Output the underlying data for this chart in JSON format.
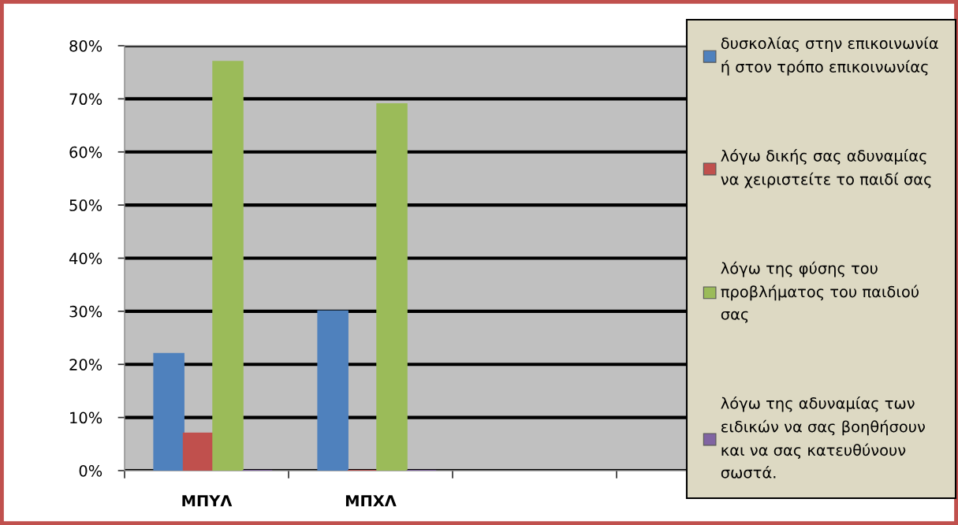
{
  "chart_data": {
    "type": "bar",
    "categories": [
      "ΜΠΥΛ",
      "ΜΠΧΛ",
      null,
      null
    ],
    "series": [
      {
        "name": "δυσκολίας στην επικοινωνία\nή στον τρόπο επικοινωνίας",
        "color": "#4f81bd",
        "values": [
          22,
          30,
          null,
          null
        ]
      },
      {
        "name": "λόγω δικής σας αδυναμίας\nνα χειριστείτε το παιδί σας",
        "color": "#c0504d",
        "values": [
          7,
          0,
          null,
          null
        ]
      },
      {
        "name": "λόγω της φύσης του\nπροβλήματος του παιδιού\nσας",
        "color": "#9bbb59",
        "values": [
          77,
          69,
          null,
          null
        ]
      },
      {
        "name": "λόγω της αδυναμίας των\nειδικών να σας βοηθήσουν\nκαι να σας κατευθύνουν\nσωστά.",
        "color": "#8064a2",
        "values": [
          0,
          0,
          null,
          null
        ]
      }
    ],
    "ylim": [
      0,
      80
    ],
    "yticks": [
      {
        "value": 0,
        "label": "0%"
      },
      {
        "value": 10,
        "label": "10%"
      },
      {
        "value": 20,
        "label": "20%"
      },
      {
        "value": 30,
        "label": "30%"
      },
      {
        "value": 40,
        "label": "40%"
      },
      {
        "value": 50,
        "label": "50%"
      },
      {
        "value": 60,
        "label": "60%"
      },
      {
        "value": 70,
        "label": "70%"
      },
      {
        "value": 80,
        "label": "80%"
      }
    ],
    "grid": "y",
    "legend": "right"
  }
}
